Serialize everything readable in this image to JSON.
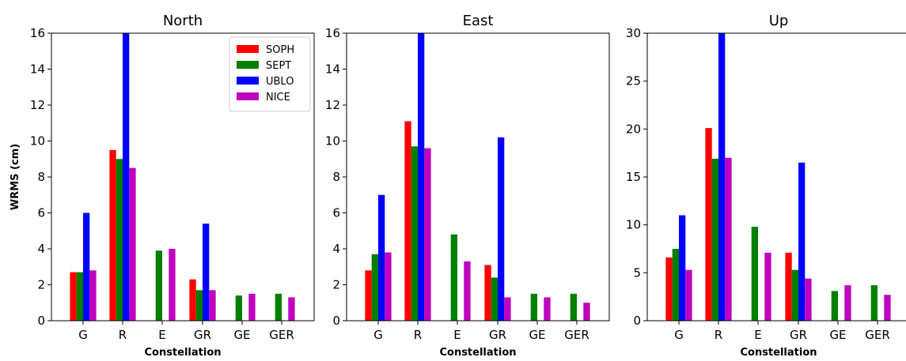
{
  "chart_data": [
    {
      "type": "bar",
      "title": "North",
      "xlabel": "Constellation",
      "ylabel": "WRMS (cm)",
      "categories": [
        "G",
        "R",
        "E",
        "GR",
        "GE",
        "GER"
      ],
      "ylim": [
        0,
        16
      ],
      "yticks": [
        0,
        2,
        4,
        6,
        8,
        10,
        12,
        14,
        16
      ],
      "legend": "top-right",
      "series": [
        {
          "name": "SOPH",
          "color": "#ff0000",
          "values": [
            2.7,
            9.5,
            0,
            2.3,
            0,
            0
          ]
        },
        {
          "name": "SEPT",
          "color": "#008000",
          "values": [
            2.7,
            9.0,
            3.9,
            1.7,
            1.4,
            1.5
          ]
        },
        {
          "name": "UBLO",
          "color": "#0000ff",
          "values": [
            6.0,
            16.5,
            0,
            5.4,
            0,
            0
          ]
        },
        {
          "name": "NICE",
          "color": "#bf00bf",
          "values": [
            2.8,
            8.5,
            4.0,
            1.7,
            1.5,
            1.3
          ]
        }
      ]
    },
    {
      "type": "bar",
      "title": "East",
      "xlabel": "Constellation",
      "ylabel": "",
      "categories": [
        "G",
        "R",
        "E",
        "GR",
        "GE",
        "GER"
      ],
      "ylim": [
        0,
        16
      ],
      "yticks": [
        0,
        2,
        4,
        6,
        8,
        10,
        12,
        14,
        16
      ],
      "series": [
        {
          "name": "SOPH",
          "color": "#ff0000",
          "values": [
            2.8,
            11.1,
            0,
            3.1,
            0,
            0
          ]
        },
        {
          "name": "SEPT",
          "color": "#008000",
          "values": [
            3.7,
            9.7,
            4.8,
            2.4,
            1.5,
            1.5
          ]
        },
        {
          "name": "UBLO",
          "color": "#0000ff",
          "values": [
            7.0,
            16.5,
            0,
            10.2,
            0,
            0
          ]
        },
        {
          "name": "NICE",
          "color": "#bf00bf",
          "values": [
            3.8,
            9.6,
            3.3,
            1.3,
            1.3,
            1.0
          ]
        }
      ]
    },
    {
      "type": "bar",
      "title": "Up",
      "xlabel": "Constellation",
      "ylabel": "",
      "categories": [
        "G",
        "R",
        "E",
        "GR",
        "GE",
        "GER"
      ],
      "ylim": [
        0,
        30
      ],
      "yticks": [
        0,
        5,
        10,
        15,
        20,
        25,
        30
      ],
      "series": [
        {
          "name": "SOPH",
          "color": "#ff0000",
          "values": [
            6.6,
            20.1,
            0,
            7.1,
            0,
            0
          ]
        },
        {
          "name": "SEPT",
          "color": "#008000",
          "values": [
            7.5,
            16.9,
            9.8,
            5.3,
            3.1,
            3.7
          ]
        },
        {
          "name": "UBLO",
          "color": "#0000ff",
          "values": [
            11.0,
            31.0,
            0,
            16.5,
            0,
            0
          ]
        },
        {
          "name": "NICE",
          "color": "#bf00bf",
          "values": [
            5.3,
            17.0,
            7.1,
            4.4,
            3.7,
            2.7
          ]
        }
      ]
    }
  ]
}
